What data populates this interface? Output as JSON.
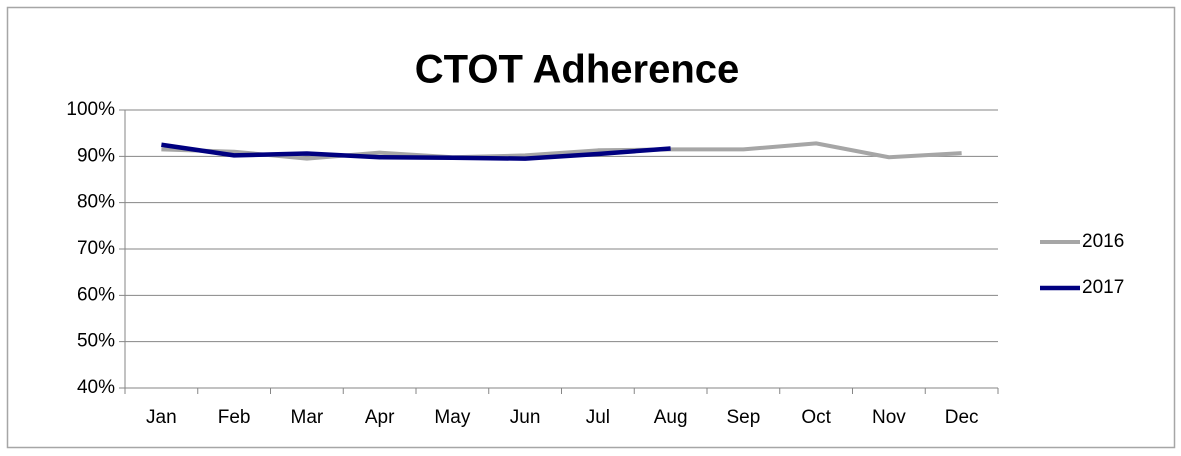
{
  "chart_data": {
    "type": "line",
    "title": "CTOT Adherence",
    "categories": [
      "Jan",
      "Feb",
      "Mar",
      "Apr",
      "May",
      "Jun",
      "Jul",
      "Aug",
      "Sep",
      "Oct",
      "Nov",
      "Dec"
    ],
    "series": [
      {
        "name": "2016",
        "color": "#a6a6a6",
        "values": [
          91.5,
          91,
          89.5,
          90.8,
          89.8,
          90.2,
          91.3,
          91.5,
          91.5,
          92.8,
          89.8,
          90.7
        ]
      },
      {
        "name": "2017",
        "color": "#000080",
        "values": [
          92.5,
          90.2,
          90.6,
          89.8,
          89.7,
          89.5,
          90.5,
          91.7,
          null,
          null,
          null,
          null
        ]
      }
    ],
    "ylim": [
      40,
      100
    ],
    "yticks": [
      {
        "value": 40,
        "label": "40%"
      },
      {
        "value": 50,
        "label": "50%"
      },
      {
        "value": 60,
        "label": "60%"
      },
      {
        "value": 70,
        "label": "70%"
      },
      {
        "value": 80,
        "label": "80%"
      },
      {
        "value": 90,
        "label": "90%"
      },
      {
        "value": 100,
        "label": "100%"
      }
    ],
    "grid": true,
    "legend": "right"
  }
}
